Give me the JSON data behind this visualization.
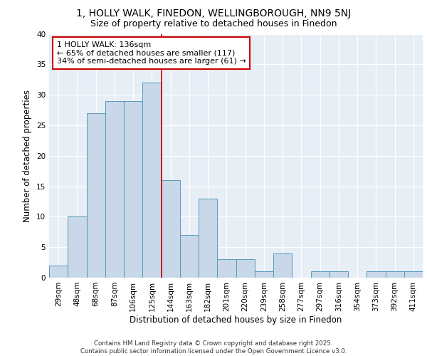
{
  "title_line1": "1, HOLLY WALK, FINEDON, WELLINGBOROUGH, NN9 5NJ",
  "title_line2": "Size of property relative to detached houses in Finedon",
  "xlabel": "Distribution of detached houses by size in Finedon",
  "ylabel": "Number of detached properties",
  "categories": [
    "29sqm",
    "48sqm",
    "68sqm",
    "87sqm",
    "106sqm",
    "125sqm",
    "144sqm",
    "163sqm",
    "182sqm",
    "201sqm",
    "220sqm",
    "239sqm",
    "258sqm",
    "277sqm",
    "297sqm",
    "316sqm",
    "354sqm",
    "373sqm",
    "392sqm",
    "411sqm"
  ],
  "values": [
    2,
    10,
    27,
    29,
    29,
    32,
    16,
    7,
    13,
    3,
    3,
    1,
    4,
    0,
    1,
    1,
    0,
    1,
    1,
    1
  ],
  "bar_color": "#c8d8e8",
  "bar_edge_color": "#5599bb",
  "vline_x": 5.5,
  "vline_color": "#cc0000",
  "annotation_title": "1 HOLLY WALK: 136sqm",
  "annotation_line2": "← 65% of detached houses are smaller (117)",
  "annotation_line3": "34% of semi-detached houses are larger (61) →",
  "annotation_box_color": "#cc0000",
  "ylim": [
    0,
    40
  ],
  "yticks": [
    0,
    5,
    10,
    15,
    20,
    25,
    30,
    35,
    40
  ],
  "background_color": "#e8eef6",
  "footer_text": "Contains HM Land Registry data © Crown copyright and database right 2025.\nContains public sector information licensed under the Open Government Licence v3.0.",
  "title_fontsize": 10,
  "subtitle_fontsize": 9,
  "axis_label_fontsize": 8.5,
  "tick_fontsize": 7.5,
  "annotation_fontsize": 8
}
